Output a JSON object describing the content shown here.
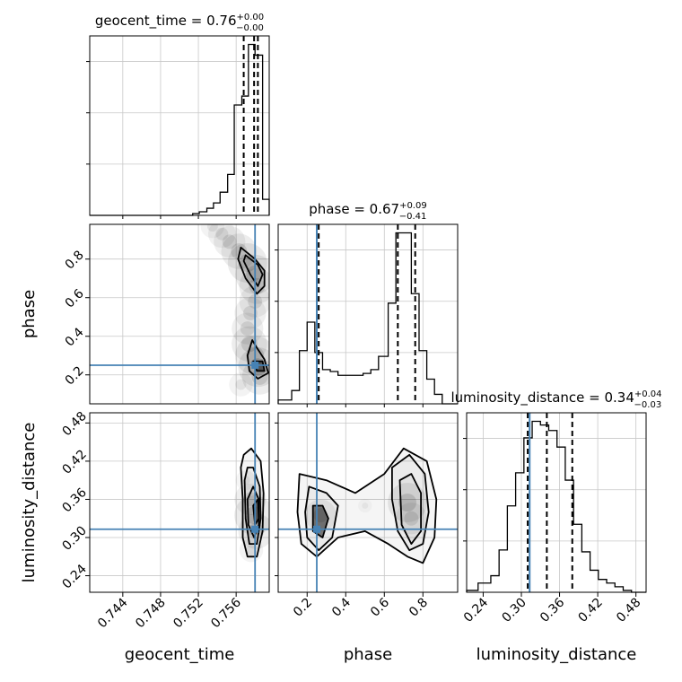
{
  "chart_data": {
    "type": "corner",
    "params": [
      "geocent_time",
      "phase",
      "luminosity_distance"
    ],
    "colors": {
      "truth": "#4682b4",
      "hist": "#000000",
      "grid": "#c8c8c8",
      "density": "#000000"
    },
    "titles": {
      "geocent_time": {
        "prefix": "geocent_time = ",
        "value": "0.76",
        "plus": "+0.00",
        "minus": "−0.00"
      },
      "phase": {
        "prefix": "phase = ",
        "value": "0.67",
        "plus": "+0.09",
        "minus": "−0.41"
      },
      "luminosity_distance": {
        "prefix": "luminosity_distance = ",
        "value": "0.34",
        "plus": "+0.04",
        "minus": "−0.03"
      }
    },
    "axis_labels": {
      "x": [
        "geocent_time",
        "phase",
        "luminosity_distance"
      ],
      "y": [
        "phase",
        "luminosity_distance"
      ]
    },
    "ranges": {
      "geocent_time": [
        0.7405,
        0.7595
      ],
      "phase": [
        0.05,
        0.98
      ],
      "luminosity_distance": [
        0.214,
        0.496
      ]
    },
    "ticks": {
      "geocent_time": {
        "values": [
          0.744,
          0.748,
          0.752,
          0.756
        ],
        "labels": [
          "0.744",
          "0.748",
          "0.752",
          "0.756"
        ]
      },
      "phase": {
        "values": [
          0.2,
          0.4,
          0.6,
          0.8
        ],
        "labels": [
          "0.2",
          "0.4",
          "0.6",
          "0.8"
        ]
      },
      "luminosity_distance": {
        "values": [
          0.24,
          0.3,
          0.36,
          0.42,
          0.48
        ],
        "labels": [
          "0.24",
          "0.30",
          "0.36",
          "0.42",
          "0.48"
        ]
      }
    },
    "truths": {
      "geocent_time": null,
      "phase": 0.25,
      "luminosity_distance": 0.313
    },
    "truth_lines_2d": {
      "geocent_time_vertical": 0.758
    },
    "quantiles": {
      "geocent_time": [
        0.7568,
        0.7579,
        0.7583
      ],
      "phase": [
        0.26,
        0.67,
        0.76
      ],
      "luminosity_distance": [
        0.31,
        0.34,
        0.38
      ]
    },
    "histograms": {
      "geocent_time": {
        "edges": [
          0.7405,
          0.7514,
          0.7521,
          0.7529,
          0.7536,
          0.7543,
          0.7551,
          0.7558,
          0.7566,
          0.7573,
          0.758,
          0.7588,
          0.7595
        ],
        "counts": [
          0,
          1,
          2,
          4,
          7,
          13,
          23,
          62,
          67,
          96,
          90,
          9
        ]
      },
      "phase": {
        "edges": [
          0.05,
          0.12,
          0.16,
          0.2,
          0.24,
          0.28,
          0.32,
          0.36,
          0.41,
          0.45,
          0.49,
          0.53,
          0.57,
          0.62,
          0.66,
          0.7,
          0.74,
          0.78,
          0.82,
          0.86,
          0.9,
          0.98
        ],
        "counts": [
          2,
          7,
          28,
          43,
          27,
          18,
          17,
          15,
          15,
          15,
          16,
          18,
          25,
          53,
          90,
          90,
          58,
          28,
          13,
          5,
          0
        ]
      },
      "luminosity_distance": {
        "edges": [
          0.214,
          0.232,
          0.252,
          0.265,
          0.278,
          0.291,
          0.304,
          0.317,
          0.33,
          0.343,
          0.356,
          0.369,
          0.382,
          0.395,
          0.408,
          0.421,
          0.434,
          0.447,
          0.46,
          0.473,
          0.486,
          0.496
        ],
        "counts": [
          1,
          5,
          9,
          23,
          47,
          65,
          84,
          93,
          91,
          88,
          79,
          61,
          37,
          22,
          12,
          7,
          5,
          3,
          1,
          0,
          0
        ]
      }
    },
    "contours_2d": {
      "geocent_time__phase": {
        "points": [
          {
            "x": 0.7535,
            "y": 0.97,
            "s": 0.6
          },
          {
            "x": 0.7545,
            "y": 0.93,
            "s": 0.7
          },
          {
            "x": 0.7553,
            "y": 0.89,
            "s": 0.8
          },
          {
            "x": 0.7563,
            "y": 0.84,
            "s": 0.9
          },
          {
            "x": 0.7572,
            "y": 0.78,
            "s": 1.0
          },
          {
            "x": 0.758,
            "y": 0.72,
            "s": 1.0
          },
          {
            "x": 0.7582,
            "y": 0.66,
            "s": 0.9
          },
          {
            "x": 0.758,
            "y": 0.58,
            "s": 0.8
          },
          {
            "x": 0.7575,
            "y": 0.52,
            "s": 0.8
          },
          {
            "x": 0.7572,
            "y": 0.44,
            "s": 0.8
          },
          {
            "x": 0.7574,
            "y": 0.36,
            "s": 0.9
          },
          {
            "x": 0.758,
            "y": 0.3,
            "s": 1.0
          },
          {
            "x": 0.7583,
            "y": 0.24,
            "s": 1.0
          },
          {
            "x": 0.7585,
            "y": 0.19,
            "s": 0.9
          },
          {
            "x": 0.7565,
            "y": 0.15,
            "s": 0.6
          }
        ],
        "levels": [
          [
            [
              0.7565,
              0.86
            ],
            [
              0.758,
              0.8
            ],
            [
              0.759,
              0.74
            ],
            [
              0.759,
              0.66
            ],
            [
              0.7582,
              0.62
            ],
            [
              0.757,
              0.7
            ],
            [
              0.7562,
              0.8
            ]
          ],
          [
            [
              0.757,
              0.82
            ],
            [
              0.7583,
              0.77
            ],
            [
              0.7588,
              0.72
            ],
            [
              0.7583,
              0.66
            ],
            [
              0.7575,
              0.72
            ],
            [
              0.7568,
              0.79
            ]
          ],
          [
            [
              0.7577,
              0.38
            ],
            [
              0.7572,
              0.3
            ],
            [
              0.7574,
              0.22
            ],
            [
              0.7583,
              0.18
            ],
            [
              0.7594,
              0.21
            ],
            [
              0.759,
              0.28
            ],
            [
              0.7582,
              0.34
            ]
          ],
          [
            [
              0.7578,
              0.27
            ],
            [
              0.7582,
              0.22
            ],
            [
              0.759,
              0.22
            ],
            [
              0.7588,
              0.27
            ]
          ]
        ]
      },
      "geocent_time__luminosity_distance": {
        "points": [
          {
            "x": 0.7579,
            "y": 0.335,
            "s": 1.0
          },
          {
            "x": 0.7575,
            "y": 0.36,
            "s": 0.8
          },
          {
            "x": 0.7581,
            "y": 0.31,
            "s": 0.9
          },
          {
            "x": 0.757,
            "y": 0.39,
            "s": 0.5
          },
          {
            "x": 0.7576,
            "y": 0.28,
            "s": 0.6
          }
        ],
        "levels": [
          [
            [
              0.7565,
              0.41
            ],
            [
              0.7567,
              0.36
            ],
            [
              0.7567,
              0.3
            ],
            [
              0.7572,
              0.27
            ],
            [
              0.7582,
              0.27
            ],
            [
              0.7588,
              0.31
            ],
            [
              0.7589,
              0.37
            ],
            [
              0.7586,
              0.42
            ],
            [
              0.7576,
              0.44
            ],
            [
              0.7568,
              0.43
            ]
          ],
          [
            [
              0.7569,
              0.39
            ],
            [
              0.757,
              0.33
            ],
            [
              0.7574,
              0.29
            ],
            [
              0.7582,
              0.29
            ],
            [
              0.7586,
              0.33
            ],
            [
              0.7585,
              0.38
            ],
            [
              0.7578,
              0.41
            ],
            [
              0.7572,
              0.41
            ]
          ],
          [
            [
              0.7572,
              0.36
            ],
            [
              0.7573,
              0.32
            ],
            [
              0.7579,
              0.3
            ],
            [
              0.7584,
              0.32
            ],
            [
              0.7584,
              0.36
            ],
            [
              0.7578,
              0.38
            ]
          ],
          [
            [
              0.7578,
              0.35
            ],
            [
              0.758,
              0.32
            ],
            [
              0.7584,
              0.33
            ],
            [
              0.7583,
              0.36
            ]
          ]
        ]
      },
      "phase__luminosity_distance": {
        "points": [
          {
            "x": 0.27,
            "y": 0.335,
            "s": 0.8
          },
          {
            "x": 0.72,
            "y": 0.355,
            "s": 1.0
          },
          {
            "x": 0.5,
            "y": 0.35,
            "s": 0.35
          },
          {
            "x": 0.74,
            "y": 0.33,
            "s": 0.8
          }
        ],
        "levels": [
          [
            [
              0.16,
              0.4
            ],
            [
              0.3,
              0.39
            ],
            [
              0.45,
              0.37
            ],
            [
              0.6,
              0.4
            ],
            [
              0.7,
              0.44
            ],
            [
              0.82,
              0.42
            ],
            [
              0.87,
              0.36
            ],
            [
              0.86,
              0.3
            ],
            [
              0.8,
              0.26
            ],
            [
              0.72,
              0.27
            ],
            [
              0.62,
              0.29
            ],
            [
              0.5,
              0.31
            ],
            [
              0.36,
              0.3
            ],
            [
              0.25,
              0.27
            ],
            [
              0.17,
              0.29
            ],
            [
              0.15,
              0.34
            ]
          ],
          [
            [
              0.21,
              0.38
            ],
            [
              0.3,
              0.37
            ],
            [
              0.36,
              0.35
            ],
            [
              0.33,
              0.3
            ],
            [
              0.26,
              0.28
            ],
            [
              0.2,
              0.3
            ],
            [
              0.19,
              0.34
            ]
          ],
          [
            [
              0.64,
              0.41
            ],
            [
              0.73,
              0.43
            ],
            [
              0.81,
              0.4
            ],
            [
              0.83,
              0.34
            ],
            [
              0.8,
              0.29
            ],
            [
              0.73,
              0.28
            ],
            [
              0.67,
              0.31
            ],
            [
              0.64,
              0.36
            ]
          ],
          [
            [
              0.68,
              0.39
            ],
            [
              0.74,
              0.4
            ],
            [
              0.79,
              0.37
            ],
            [
              0.79,
              0.31
            ],
            [
              0.74,
              0.29
            ],
            [
              0.69,
              0.32
            ]
          ],
          [
            [
              0.23,
              0.35
            ],
            [
              0.28,
              0.35
            ],
            [
              0.31,
              0.33
            ],
            [
              0.28,
              0.3
            ],
            [
              0.23,
              0.31
            ]
          ]
        ]
      }
    }
  }
}
